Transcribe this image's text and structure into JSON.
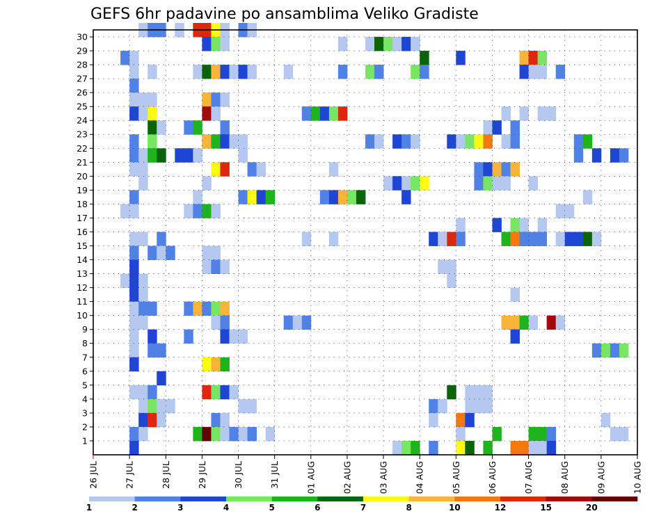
{
  "chart_data": {
    "type": "heatmap",
    "title": "GEFS 6hr padavine po ansamblima Veliko Gradiste",
    "xlabel": "",
    "ylabel": "",
    "x_ticks": [
      "26 JUL",
      "27 JUL",
      "28 JUL",
      "29 JUL",
      "30 JUL",
      "31 JUL",
      "01 AUG",
      "02 AUG",
      "03 AUG",
      "04 AUG",
      "05 AUG",
      "06 AUG",
      "07 AUG",
      "08 AUG",
      "09 AUG",
      "10 AUG"
    ],
    "x_range": [
      0,
      60
    ],
    "y_ticks": [
      1,
      2,
      3,
      4,
      5,
      6,
      7,
      8,
      9,
      10,
      11,
      12,
      13,
      14,
      15,
      16,
      17,
      18,
      19,
      20,
      21,
      22,
      23,
      24,
      25,
      26,
      27,
      28,
      29,
      30
    ],
    "y_range": [
      0,
      30
    ],
    "grid": true,
    "colorbar": {
      "placement": "bottom",
      "labels": [
        "1",
        "2",
        "3",
        "4",
        "5",
        "6",
        "7",
        "8",
        "10",
        "12",
        "15",
        "20"
      ],
      "colors": [
        "#b4c8f0",
        "#5082e6",
        "#1e46d2",
        "#78e664",
        "#1eb41e",
        "#0a640a",
        "#fffa14",
        "#fab43c",
        "#f5780f",
        "#dc280f",
        "#a00a0a",
        "#640000"
      ]
    },
    "cells": [
      [
        5,
        30,
        0
      ],
      [
        6,
        30,
        1
      ],
      [
        7,
        30,
        1
      ],
      [
        9,
        30,
        0
      ],
      [
        11,
        30,
        9
      ],
      [
        12,
        30,
        9
      ],
      [
        13,
        30,
        6
      ],
      [
        14,
        30,
        0
      ],
      [
        16,
        30,
        1
      ],
      [
        17,
        30,
        0
      ],
      [
        12,
        29,
        2
      ],
      [
        13,
        29,
        3
      ],
      [
        14,
        29,
        0
      ],
      [
        27,
        29,
        0
      ],
      [
        30,
        29,
        0
      ],
      [
        31,
        29,
        5
      ],
      [
        32,
        29,
        3
      ],
      [
        33,
        29,
        0
      ],
      [
        34,
        29,
        2
      ],
      [
        35,
        29,
        0
      ],
      [
        3,
        28,
        1
      ],
      [
        4,
        28,
        0
      ],
      [
        36,
        28,
        5
      ],
      [
        40,
        28,
        2
      ],
      [
        47,
        28,
        7
      ],
      [
        48,
        28,
        9
      ],
      [
        49,
        28,
        3
      ],
      [
        4,
        27,
        0
      ],
      [
        6,
        27,
        0
      ],
      [
        11,
        27,
        0
      ],
      [
        12,
        27,
        5
      ],
      [
        13,
        27,
        7
      ],
      [
        14,
        27,
        2
      ],
      [
        15,
        27,
        0
      ],
      [
        16,
        27,
        2
      ],
      [
        17,
        27,
        0
      ],
      [
        21,
        27,
        0
      ],
      [
        27,
        27,
        1
      ],
      [
        30,
        27,
        3
      ],
      [
        31,
        27,
        1
      ],
      [
        35,
        27,
        3
      ],
      [
        36,
        27,
        1
      ],
      [
        47,
        27,
        2
      ],
      [
        48,
        27,
        0
      ],
      [
        49,
        27,
        0
      ],
      [
        51,
        27,
        1
      ],
      [
        4,
        26,
        1
      ],
      [
        4,
        25,
        0
      ],
      [
        5,
        25,
        0
      ],
      [
        6,
        25,
        0
      ],
      [
        12,
        25,
        7
      ],
      [
        13,
        25,
        1
      ],
      [
        14,
        25,
        0
      ],
      [
        4,
        24,
        2
      ],
      [
        5,
        24,
        0
      ],
      [
        6,
        24,
        6
      ],
      [
        12,
        24,
        10
      ],
      [
        13,
        24,
        0
      ],
      [
        23,
        24,
        1
      ],
      [
        24,
        24,
        4
      ],
      [
        25,
        24,
        2
      ],
      [
        26,
        24,
        3
      ],
      [
        27,
        24,
        9
      ],
      [
        45,
        24,
        0
      ],
      [
        47,
        24,
        0
      ],
      [
        49,
        24,
        0
      ],
      [
        50,
        24,
        0
      ],
      [
        6,
        23,
        5
      ],
      [
        7,
        23,
        0
      ],
      [
        10,
        23,
        1
      ],
      [
        11,
        23,
        4
      ],
      [
        14,
        23,
        1
      ],
      [
        43,
        23,
        0
      ],
      [
        44,
        23,
        2
      ],
      [
        46,
        23,
        1
      ],
      [
        4,
        22,
        1
      ],
      [
        6,
        22,
        3
      ],
      [
        12,
        22,
        7
      ],
      [
        13,
        22,
        4
      ],
      [
        14,
        22,
        2
      ],
      [
        15,
        22,
        0
      ],
      [
        16,
        22,
        0
      ],
      [
        30,
        22,
        1
      ],
      [
        31,
        22,
        0
      ],
      [
        33,
        22,
        2
      ],
      [
        34,
        22,
        1
      ],
      [
        35,
        22,
        0
      ],
      [
        39,
        22,
        2
      ],
      [
        40,
        22,
        0
      ],
      [
        41,
        22,
        3
      ],
      [
        42,
        22,
        6
      ],
      [
        43,
        22,
        8
      ],
      [
        45,
        22,
        0
      ],
      [
        46,
        22,
        1
      ],
      [
        53,
        22,
        1
      ],
      [
        54,
        22,
        4
      ],
      [
        4,
        21,
        1
      ],
      [
        5,
        21,
        0
      ],
      [
        6,
        21,
        4
      ],
      [
        7,
        21,
        5
      ],
      [
        9,
        21,
        2
      ],
      [
        10,
        21,
        2
      ],
      [
        11,
        21,
        0
      ],
      [
        16,
        21,
        0
      ],
      [
        53,
        21,
        1
      ],
      [
        55,
        21,
        2
      ],
      [
        57,
        21,
        2
      ],
      [
        58,
        21,
        1
      ],
      [
        4,
        20,
        0
      ],
      [
        5,
        20,
        0
      ],
      [
        13,
        20,
        6
      ],
      [
        14,
        20,
        9
      ],
      [
        17,
        20,
        1
      ],
      [
        18,
        20,
        0
      ],
      [
        26,
        20,
        0
      ],
      [
        42,
        20,
        1
      ],
      [
        43,
        20,
        2
      ],
      [
        44,
        20,
        7
      ],
      [
        45,
        20,
        1
      ],
      [
        46,
        20,
        7
      ],
      [
        5,
        19,
        0
      ],
      [
        12,
        19,
        0
      ],
      [
        42,
        19,
        1
      ],
      [
        43,
        19,
        3
      ],
      [
        44,
        19,
        0
      ],
      [
        45,
        19,
        0
      ],
      [
        48,
        19,
        0
      ],
      [
        32,
        19,
        0
      ],
      [
        33,
        19,
        2
      ],
      [
        34,
        19,
        0
      ],
      [
        35,
        19,
        3
      ],
      [
        36,
        19,
        6
      ],
      [
        4,
        18,
        1
      ],
      [
        11,
        18,
        0
      ],
      [
        16,
        18,
        1
      ],
      [
        17,
        18,
        6
      ],
      [
        18,
        18,
        2
      ],
      [
        19,
        18,
        4
      ],
      [
        25,
        18,
        1
      ],
      [
        26,
        18,
        2
      ],
      [
        27,
        18,
        7
      ],
      [
        28,
        18,
        3
      ],
      [
        29,
        18,
        5
      ],
      [
        34,
        18,
        2
      ],
      [
        54,
        18,
        0
      ],
      [
        3,
        17,
        0
      ],
      [
        4,
        17,
        0
      ],
      [
        10,
        17,
        0
      ],
      [
        11,
        17,
        1
      ],
      [
        12,
        17,
        4
      ],
      [
        13,
        17,
        0
      ],
      [
        51,
        17,
        0
      ],
      [
        52,
        17,
        0
      ],
      [
        40,
        16,
        0
      ],
      [
        44,
        16,
        2
      ],
      [
        46,
        16,
        3
      ],
      [
        47,
        16,
        0
      ],
      [
        49,
        16,
        0
      ],
      [
        4,
        15,
        0
      ],
      [
        5,
        15,
        0
      ],
      [
        7,
        15,
        1
      ],
      [
        23,
        15,
        0
      ],
      [
        26,
        15,
        0
      ],
      [
        37,
        15,
        2
      ],
      [
        38,
        15,
        0
      ],
      [
        39,
        15,
        9
      ],
      [
        40,
        15,
        1
      ],
      [
        45,
        15,
        4
      ],
      [
        46,
        15,
        8
      ],
      [
        47,
        15,
        1
      ],
      [
        48,
        15,
        1
      ],
      [
        49,
        15,
        1
      ],
      [
        51,
        15,
        0
      ],
      [
        52,
        15,
        2
      ],
      [
        53,
        15,
        2
      ],
      [
        54,
        15,
        5
      ],
      [
        55,
        15,
        0
      ],
      [
        4,
        14,
        1
      ],
      [
        6,
        14,
        1
      ],
      [
        7,
        14,
        0
      ],
      [
        8,
        14,
        1
      ],
      [
        12,
        14,
        0
      ],
      [
        13,
        14,
        0
      ],
      [
        4,
        13,
        2
      ],
      [
        12,
        13,
        0
      ],
      [
        13,
        13,
        1
      ],
      [
        14,
        13,
        0
      ],
      [
        38,
        13,
        0
      ],
      [
        39,
        13,
        0
      ],
      [
        3,
        12,
        0
      ],
      [
        4,
        12,
        2
      ],
      [
        5,
        12,
        0
      ],
      [
        39,
        12,
        0
      ],
      [
        4,
        11,
        2
      ],
      [
        5,
        11,
        0
      ],
      [
        46,
        11,
        0
      ],
      [
        4,
        10,
        0
      ],
      [
        5,
        10,
        1
      ],
      [
        6,
        10,
        1
      ],
      [
        10,
        10,
        1
      ],
      [
        11,
        10,
        7
      ],
      [
        12,
        10,
        1
      ],
      [
        13,
        10,
        3
      ],
      [
        14,
        10,
        7
      ],
      [
        4,
        9,
        0
      ],
      [
        5,
        9,
        0
      ],
      [
        13,
        9,
        0
      ],
      [
        14,
        9,
        1
      ],
      [
        21,
        9,
        1
      ],
      [
        22,
        9,
        0
      ],
      [
        23,
        9,
        1
      ],
      [
        45,
        9,
        7
      ],
      [
        46,
        9,
        7
      ],
      [
        47,
        9,
        4
      ],
      [
        48,
        9,
        0
      ],
      [
        50,
        9,
        10
      ],
      [
        51,
        9,
        0
      ],
      [
        4,
        8,
        0
      ],
      [
        6,
        8,
        2
      ],
      [
        10,
        8,
        1
      ],
      [
        14,
        8,
        2
      ],
      [
        15,
        8,
        0
      ],
      [
        16,
        8,
        0
      ],
      [
        46,
        8,
        2
      ],
      [
        4,
        7,
        0
      ],
      [
        6,
        7,
        1
      ],
      [
        7,
        7,
        1
      ],
      [
        55,
        7,
        1
      ],
      [
        56,
        7,
        3
      ],
      [
        57,
        7,
        1
      ],
      [
        58,
        7,
        3
      ],
      [
        4,
        6,
        2
      ],
      [
        12,
        6,
        6
      ],
      [
        13,
        6,
        7
      ],
      [
        14,
        6,
        4
      ],
      [
        7,
        5,
        2
      ],
      [
        4,
        4,
        0
      ],
      [
        5,
        4,
        0
      ],
      [
        6,
        4,
        1
      ],
      [
        12,
        4,
        9
      ],
      [
        13,
        4,
        3
      ],
      [
        14,
        4,
        2
      ],
      [
        15,
        4,
        0
      ],
      [
        39,
        4,
        5
      ],
      [
        41,
        4,
        0
      ],
      [
        42,
        4,
        0
      ],
      [
        43,
        4,
        0
      ],
      [
        5,
        3,
        0
      ],
      [
        6,
        3,
        3
      ],
      [
        7,
        3,
        0
      ],
      [
        8,
        3,
        0
      ],
      [
        16,
        3,
        0
      ],
      [
        17,
        3,
        0
      ],
      [
        37,
        3,
        1
      ],
      [
        38,
        3,
        0
      ],
      [
        41,
        3,
        0
      ],
      [
        42,
        3,
        0
      ],
      [
        43,
        3,
        0
      ],
      [
        5,
        2,
        2
      ],
      [
        6,
        2,
        9
      ],
      [
        7,
        2,
        0
      ],
      [
        13,
        2,
        1
      ],
      [
        14,
        2,
        0
      ],
      [
        37,
        2,
        0
      ],
      [
        40,
        2,
        8
      ],
      [
        41,
        2,
        2
      ],
      [
        56,
        2,
        0
      ],
      [
        4,
        1,
        1
      ],
      [
        5,
        1,
        0
      ],
      [
        11,
        1,
        4
      ],
      [
        12,
        1,
        11
      ],
      [
        13,
        1,
        3
      ],
      [
        14,
        1,
        0
      ],
      [
        15,
        1,
        1
      ],
      [
        16,
        1,
        0
      ],
      [
        17,
        1,
        1
      ],
      [
        19,
        1,
        0
      ],
      [
        40,
        1,
        0
      ],
      [
        44,
        1,
        4
      ],
      [
        48,
        1,
        4
      ],
      [
        49,
        1,
        4
      ],
      [
        50,
        1,
        1
      ],
      [
        57,
        1,
        0
      ],
      [
        58,
        1,
        0
      ],
      [
        4,
        0,
        2
      ],
      [
        33,
        0,
        0
      ],
      [
        34,
        0,
        3
      ],
      [
        35,
        0,
        4
      ],
      [
        37,
        0,
        1
      ],
      [
        40,
        0,
        6
      ],
      [
        41,
        0,
        5
      ],
      [
        43,
        0,
        4
      ],
      [
        46,
        0,
        8
      ],
      [
        47,
        0,
        8
      ],
      [
        48,
        0,
        0
      ],
      [
        49,
        0,
        0
      ],
      [
        50,
        0,
        2
      ]
    ]
  }
}
